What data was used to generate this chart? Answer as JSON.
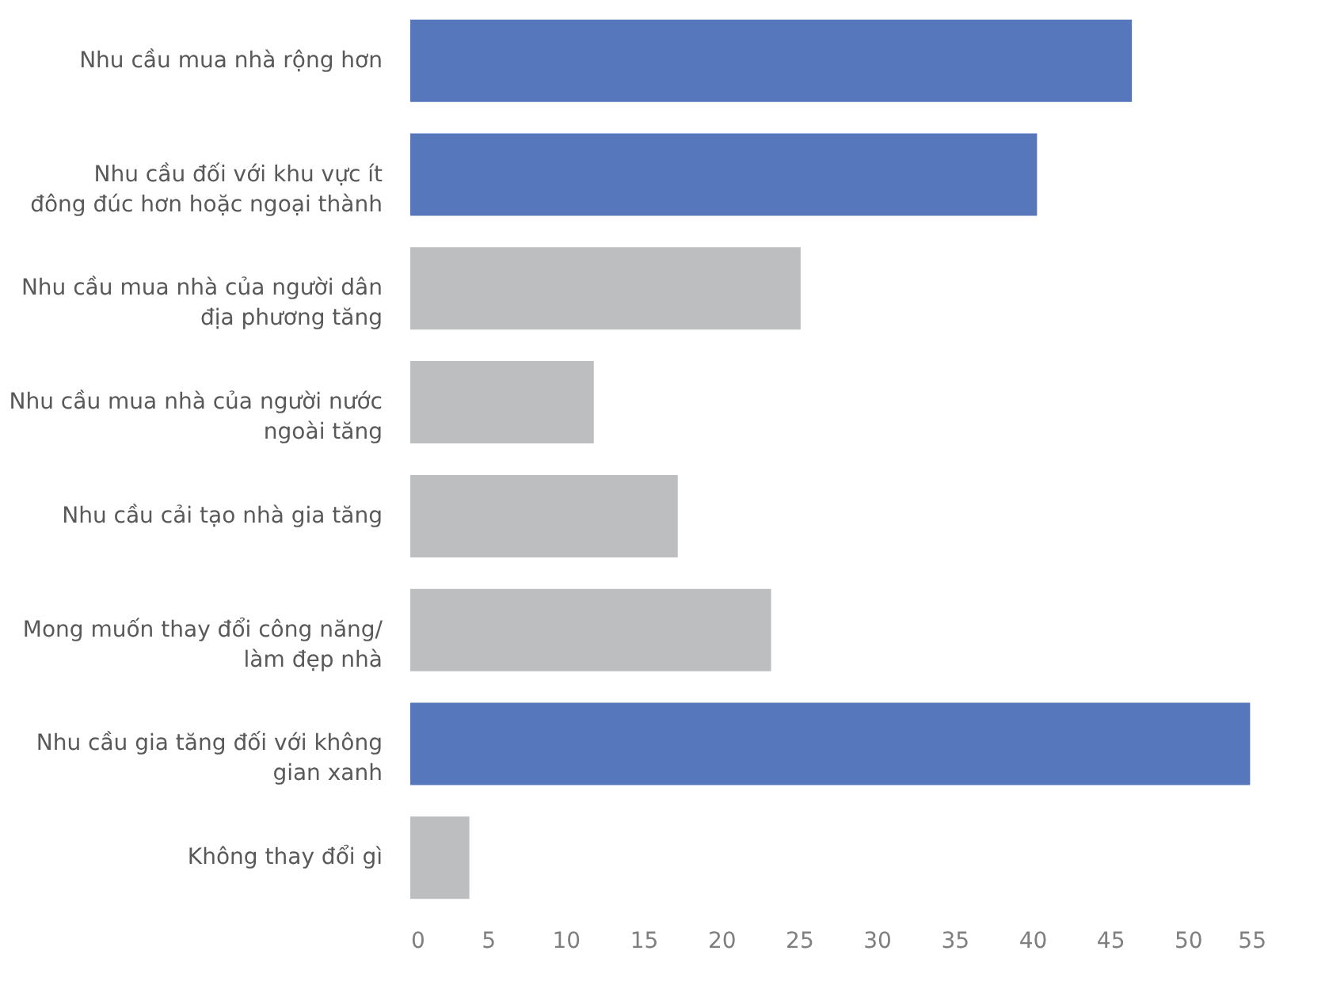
{
  "chart_data": {
    "type": "bar",
    "orientation": "horizontal",
    "categories": [
      "Nhu cầu mua nhà rộng hơn",
      "Nhu cầu đối với khu vực ít đông đúc hơn hoặc ngoại thành",
      "Nhu cầu mua nhà của người dân địa phương tăng",
      "Nhu cầu mua nhà của người nước ngoài tăng",
      "Nhu cầu cải tạo nhà gia tăng",
      "Mong muốn thay đổi công năng/ làm đẹp nhà",
      "Nhu cầu gia tăng đối với không gian xanh",
      "Không thay đổi gì"
    ],
    "values": [
      46.4,
      40.3,
      25.1,
      11.8,
      17.2,
      23.2,
      54,
      3.8
    ],
    "colors": [
      "#5677bb",
      "#5677bb",
      "#bdbec0",
      "#bdbec0",
      "#bdbec0",
      "#bdbec0",
      "#5677bb",
      "#bdbec0"
    ],
    "xlim": [
      0,
      55
    ],
    "xticks": [
      0,
      5,
      10,
      15,
      20,
      25,
      30,
      35,
      40,
      45,
      50,
      55
    ],
    "grid": false
  }
}
